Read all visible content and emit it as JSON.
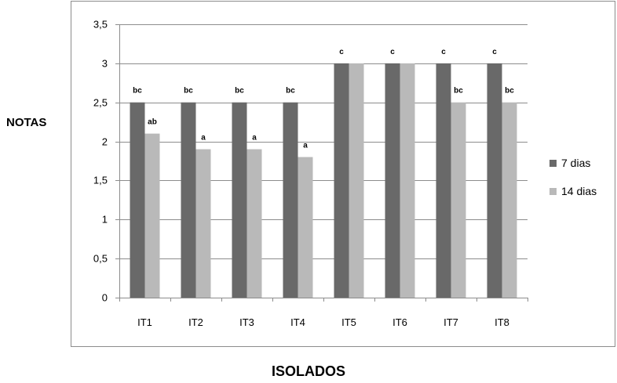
{
  "chart_data": {
    "type": "bar",
    "ylabel": "NOTAS",
    "xlabel": "ISOLADOS",
    "categories": [
      "IT1",
      "IT2",
      "IT3",
      "IT4",
      "IT5",
      "IT6",
      "IT7",
      "IT8"
    ],
    "series": [
      {
        "name": "7 dias",
        "color": "#696969",
        "values": [
          2.5,
          2.5,
          2.5,
          2.5,
          3,
          3,
          3,
          3
        ],
        "labels": [
          "bc",
          "bc",
          "bc",
          "bc",
          "c",
          "c",
          "c",
          "c"
        ]
      },
      {
        "name": "14 dias",
        "color": "#b9b9b9",
        "values": [
          2.1,
          1.9,
          1.9,
          1.8,
          3,
          3,
          2.5,
          2.5
        ],
        "labels": [
          "ab",
          "a",
          "a",
          "a",
          "",
          "",
          "bc",
          "bc"
        ]
      }
    ],
    "ylim": [
      0,
      3.5
    ],
    "yticks": [
      "0",
      "0,5",
      "1",
      "1,5",
      "2",
      "2,5",
      "3",
      "3,5"
    ],
    "grid": true,
    "legend": "right"
  }
}
